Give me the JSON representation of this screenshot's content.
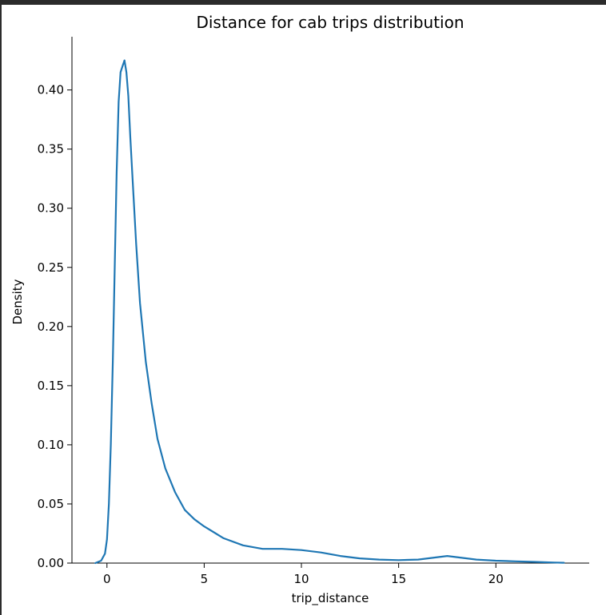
{
  "chart_data": {
    "type": "line",
    "kind": "kde",
    "title": "Distance for cab trips distribution",
    "xlabel": "trip_distance",
    "ylabel": "Density",
    "xlim": [
      -1.8,
      24.8
    ],
    "ylim": [
      0,
      0.445
    ],
    "grid": false,
    "line_color": "#1f77b4",
    "x_ticks": [
      0,
      5,
      10,
      15,
      20
    ],
    "x_tick_labels": [
      "0",
      "5",
      "10",
      "15",
      "20"
    ],
    "y_ticks": [
      0,
      0.05,
      0.1,
      0.15,
      0.2,
      0.25,
      0.3,
      0.35,
      0.4
    ],
    "y_tick_labels": [
      "0.00",
      "0.05",
      "0.10",
      "0.15",
      "0.20",
      "0.25",
      "0.30",
      "0.35",
      "0.40"
    ],
    "series": [
      {
        "name": "trip_distance",
        "x": [
          -0.6,
          -0.3,
          -0.1,
          0.0,
          0.1,
          0.2,
          0.3,
          0.4,
          0.5,
          0.6,
          0.7,
          0.8,
          0.9,
          1.0,
          1.1,
          1.2,
          1.3,
          1.5,
          1.7,
          2.0,
          2.3,
          2.6,
          3.0,
          3.5,
          4.0,
          4.5,
          5.0,
          5.5,
          6.0,
          7.0,
          8.0,
          9.0,
          10.0,
          11.0,
          12.0,
          13.0,
          14.0,
          15.0,
          16.0,
          17.0,
          17.5,
          18.0,
          19.0,
          20.0,
          21.0,
          22.0,
          23.0,
          23.5
        ],
        "y": [
          0.0,
          0.002,
          0.008,
          0.02,
          0.05,
          0.1,
          0.17,
          0.25,
          0.33,
          0.39,
          0.415,
          0.42,
          0.425,
          0.415,
          0.395,
          0.36,
          0.33,
          0.27,
          0.22,
          0.17,
          0.135,
          0.105,
          0.08,
          0.06,
          0.045,
          0.037,
          0.031,
          0.026,
          0.021,
          0.015,
          0.012,
          0.012,
          0.011,
          0.009,
          0.006,
          0.004,
          0.003,
          0.0025,
          0.003,
          0.005,
          0.006,
          0.005,
          0.003,
          0.002,
          0.0015,
          0.001,
          0.0005,
          0.0003
        ]
      }
    ]
  }
}
